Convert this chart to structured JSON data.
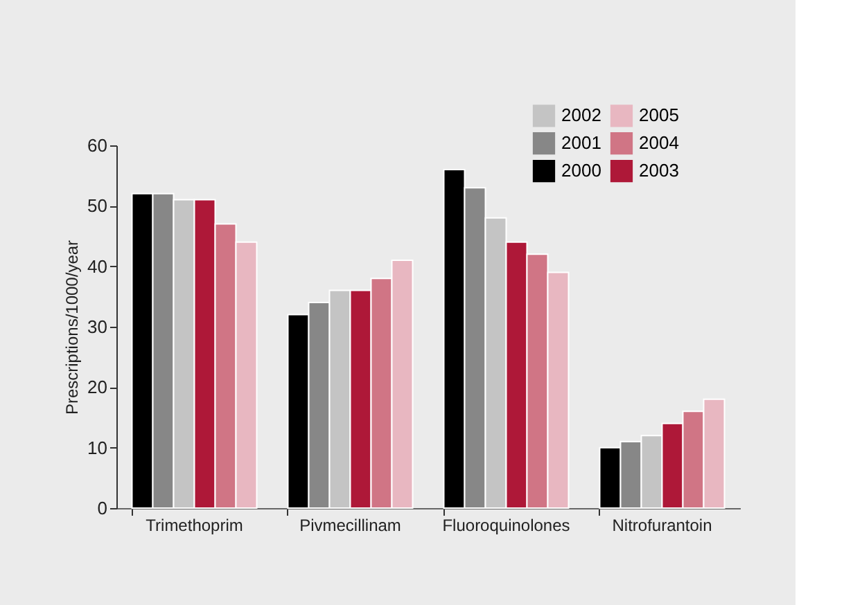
{
  "chart_data": {
    "type": "bar",
    "ylabel": "Prescriptions/1000/year",
    "categories": [
      "Trimethoprim",
      "Pivmecillinam",
      "Fluoroquinolones",
      "Nitrofurantoin"
    ],
    "series": [
      {
        "name": "2000",
        "color": "#000000",
        "values": [
          52,
          32,
          56,
          10
        ]
      },
      {
        "name": "2001",
        "color": "#878787",
        "values": [
          52,
          34,
          53,
          11
        ]
      },
      {
        "name": "2002",
        "color": "#c4c4c4",
        "values": [
          51,
          36,
          48,
          12
        ]
      },
      {
        "name": "2003",
        "color": "#ae1838",
        "values": [
          51,
          36,
          44,
          14
        ]
      },
      {
        "name": "2004",
        "color": "#d07585",
        "values": [
          47,
          38,
          42,
          16
        ]
      },
      {
        "name": "2005",
        "color": "#e8b7c1",
        "values": [
          44,
          41,
          39,
          18
        ]
      }
    ],
    "ylim": [
      0,
      60
    ],
    "yticks": [
      0,
      10,
      20,
      30,
      40,
      50,
      60
    ],
    "grid": false,
    "legend": "top right"
  }
}
